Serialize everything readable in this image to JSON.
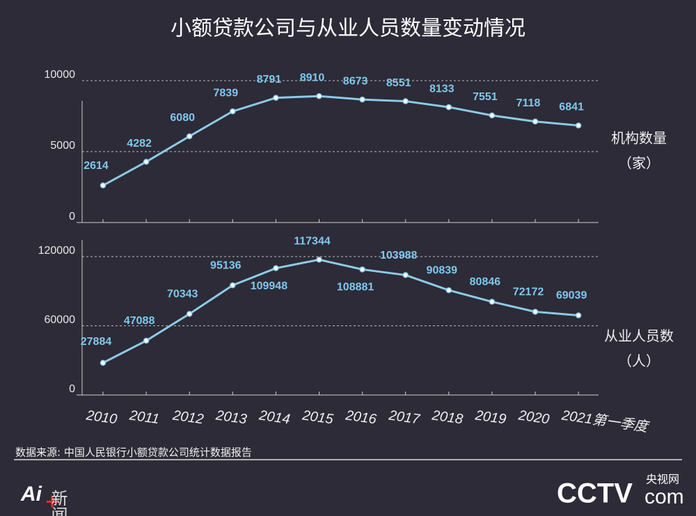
{
  "title": "小额贷款公司与从业人员数量变动情况",
  "source": "数据来源: 中国人民银行小额贷款公司统计数据报告",
  "brand": {
    "cctv": "CCTV",
    "com": "com",
    "name": "央视网"
  },
  "ai_logo": {
    "ai": "Ai",
    "plus": "+",
    "news": "新闻"
  },
  "chart_data": [
    {
      "type": "line",
      "series": [
        {
          "name": "机构数量",
          "unit": "（家）",
          "color": "#8ccbe8",
          "values": [
            2614,
            4282,
            6080,
            7839,
            8791,
            8910,
            8673,
            8551,
            8133,
            7551,
            7118,
            6841
          ]
        }
      ],
      "ylim": [
        0,
        10000
      ],
      "yticks": [
        0,
        5000,
        10000
      ],
      "grid": true
    },
    {
      "type": "line",
      "categories": [
        "2010",
        "2011",
        "2012",
        "2013",
        "2014",
        "2015",
        "2016",
        "2017",
        "2018",
        "2019",
        "2020",
        "2021第一季度"
      ],
      "series": [
        {
          "name": "从业人员数",
          "unit": "（人）",
          "color": "#8ccbe8",
          "values": [
            27884,
            47088,
            70343,
            95136,
            109948,
            117344,
            108881,
            103988,
            90839,
            80846,
            72172,
            69039
          ]
        }
      ],
      "ylim": [
        0,
        120000
      ],
      "yticks": [
        0,
        60000,
        120000
      ],
      "grid": true
    }
  ]
}
